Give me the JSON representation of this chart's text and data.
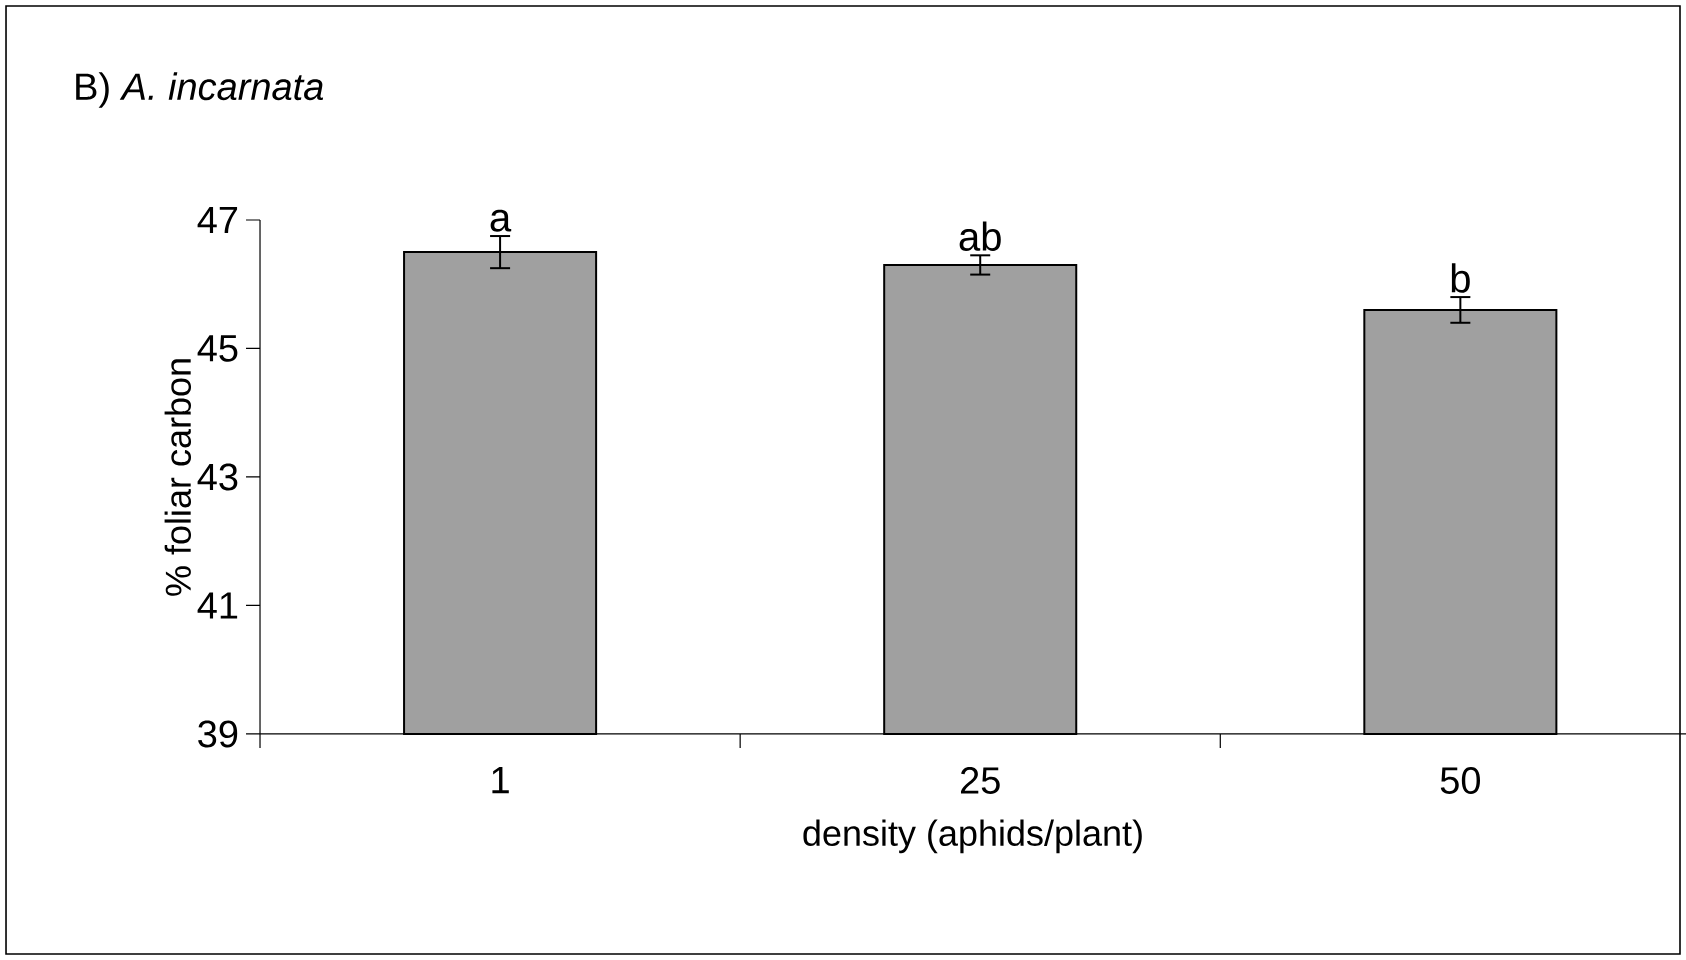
{
  "chart_data": {
    "type": "bar",
    "title": "B) *A. incarnata*",
    "xlabel": "density (aphids/plant)",
    "ylabel": "% foliar carbon",
    "categories": [
      "1",
      "25",
      "50"
    ],
    "values": [
      46.5,
      46.3,
      45.6
    ],
    "errors": [
      0.25,
      0.15,
      0.2
    ],
    "color": "#a0a0a0",
    "ylim": [
      39,
      47
    ],
    "yticks": [
      39,
      41,
      43,
      45,
      47
    ],
    "annotations": [
      {
        "text": "a",
        "x": "1",
        "y": 46.75
      },
      {
        "text": "ab",
        "x": "25",
        "y": 46.45
      },
      {
        "text": "b",
        "x": "50",
        "y": 45.8
      }
    ]
  }
}
